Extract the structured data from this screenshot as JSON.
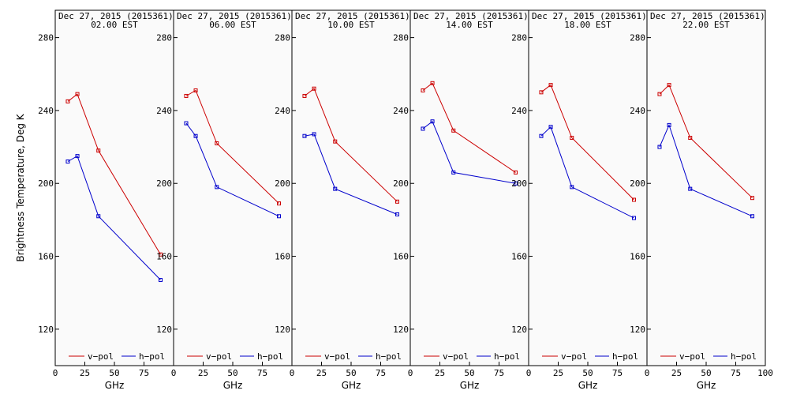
{
  "chart_data": {
    "type": "line",
    "ylabel": "Brightness Temperature, Deg K",
    "ylim": [
      100,
      295
    ],
    "yticks": [
      120,
      160,
      200,
      240,
      280
    ],
    "xlim": [
      0,
      100
    ],
    "xticks": [
      0,
      25,
      50,
      75,
      100
    ],
    "xlabel": "GHz",
    "colors": {
      "v": "#cc0000",
      "h": "#0000cc",
      "bg": "#fafafa"
    },
    "legend": {
      "v_label": "v−pol",
      "h_label": "h−pol",
      "placement": "bottom"
    },
    "x": [
      10.65,
      18.7,
      36.5,
      89.0
    ],
    "panels": [
      {
        "date": "Dec 27, 2015 (2015361)",
        "time": "02.00 EST",
        "series": [
          {
            "name": "v-pol",
            "values": [
              245,
              249,
              218,
              161
            ]
          },
          {
            "name": "h-pol",
            "values": [
              212,
              215,
              182,
              147
            ]
          }
        ]
      },
      {
        "date": "Dec 27, 2015 (2015361)",
        "time": "06.00 EST",
        "series": [
          {
            "name": "v-pol",
            "values": [
              248,
              251,
              222,
              189
            ]
          },
          {
            "name": "h-pol",
            "values": [
              233,
              226,
              198,
              182
            ]
          }
        ]
      },
      {
        "date": "Dec 27, 2015 (2015361)",
        "time": "10.00 EST",
        "series": [
          {
            "name": "v-pol",
            "values": [
              248,
              252,
              223,
              190
            ]
          },
          {
            "name": "h-pol",
            "values": [
              226,
              227,
              197,
              183
            ]
          }
        ]
      },
      {
        "date": "Dec 27, 2015 (2015361)",
        "time": "14.00 EST",
        "series": [
          {
            "name": "v-pol",
            "values": [
              251,
              255,
              229,
              206
            ]
          },
          {
            "name": "h-pol",
            "values": [
              230,
              234,
              206,
              200
            ]
          }
        ]
      },
      {
        "date": "Dec 27, 2015 (2015361)",
        "time": "18.00 EST",
        "series": [
          {
            "name": "v-pol",
            "values": [
              250,
              254,
              225,
              191
            ]
          },
          {
            "name": "h-pol",
            "values": [
              226,
              231,
              198,
              181
            ]
          }
        ]
      },
      {
        "date": "Dec 27, 2015 (2015361)",
        "time": "22.00 EST",
        "series": [
          {
            "name": "v-pol",
            "values": [
              249,
              254,
              225,
              192
            ]
          },
          {
            "name": "h-pol",
            "values": [
              220,
              232,
              197,
              182
            ]
          }
        ]
      }
    ]
  }
}
